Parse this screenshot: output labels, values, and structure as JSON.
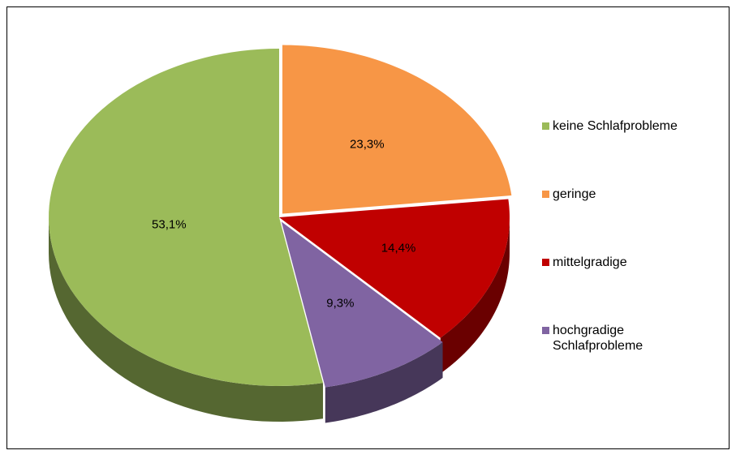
{
  "chart_data": {
    "type": "pie",
    "categories": [
      "keine Schlafprobleme",
      "geringe",
      "mittelgradige",
      "hochgradige Schlafprobleme"
    ],
    "values": [
      53.1,
      23.3,
      14.4,
      9.3
    ],
    "value_labels": [
      "53,1%",
      "23,3%",
      "14,4%",
      "9,3%"
    ],
    "colors": [
      "#9bbb59",
      "#f79646",
      "#c00000",
      "#8064a2"
    ],
    "legend": "right"
  }
}
